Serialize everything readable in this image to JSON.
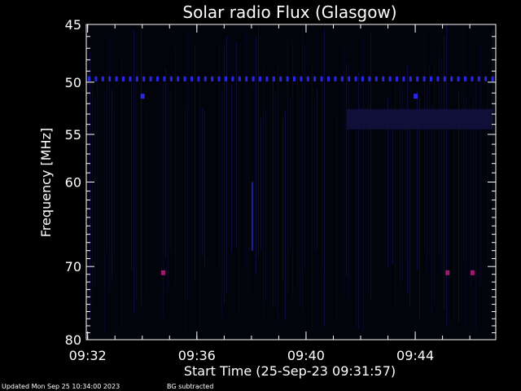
{
  "chart_data": {
    "type": "heatmap",
    "title": "Solar radio Flux (Glasgow)",
    "ylabel": "Frequency [MHz]",
    "xlabel": "Start Time (25-Sep-23 09:31:57)",
    "y_scale": "log",
    "ylim": [
      45,
      80
    ],
    "y_inverted": true,
    "y_ticks": [
      45,
      50,
      55,
      60,
      70,
      80
    ],
    "y_tick_labels": [
      "45",
      "50",
      "55",
      "60",
      "70",
      "80"
    ],
    "xlim": [
      "09:31:57",
      "09:46:57"
    ],
    "x_ticks": [
      "09:32",
      "09:36",
      "09:40",
      "09:44"
    ],
    "x_tick_labels": [
      "09:32",
      "09:36",
      "09:40",
      "09:44"
    ],
    "colors": {
      "background": "#000000",
      "signal_low": "#0a0a30",
      "signal_mid": "#1e1ea0",
      "signal_high": "#2828e6",
      "burst": "#a01870",
      "axes": "#ffffff"
    },
    "features": [
      {
        "kind": "band",
        "freq_mhz": 49.7,
        "time_start": "09:31:57",
        "time_end": "09:46:57",
        "intensity": "high"
      },
      {
        "kind": "region",
        "freq_mhz": [
          52.5,
          54.5
        ],
        "time_start": "09:41:30",
        "time_end": "09:46:57",
        "intensity": "low"
      },
      {
        "kind": "streak",
        "time": "09:38:00",
        "freq_mhz": [
          60,
          68
        ],
        "intensity": "mid"
      },
      {
        "kind": "spot",
        "time": "09:34:00",
        "freq_mhz": 51.3,
        "intensity": "high"
      },
      {
        "kind": "spot",
        "time": "09:44:00",
        "freq_mhz": 51.3,
        "intensity": "high"
      },
      {
        "kind": "spot",
        "time": "09:45:10",
        "freq_mhz": 70.8,
        "intensity": "burst"
      },
      {
        "kind": "spot",
        "time": "09:46:05",
        "freq_mhz": 70.8,
        "intensity": "burst"
      },
      {
        "kind": "spot",
        "time": "09:34:45",
        "freq_mhz": 70.8,
        "intensity": "burst"
      }
    ]
  },
  "footer": {
    "updated": "Updated Mon Sep 25 10:34:00 2023",
    "bg_note": "BG subtracted"
  }
}
